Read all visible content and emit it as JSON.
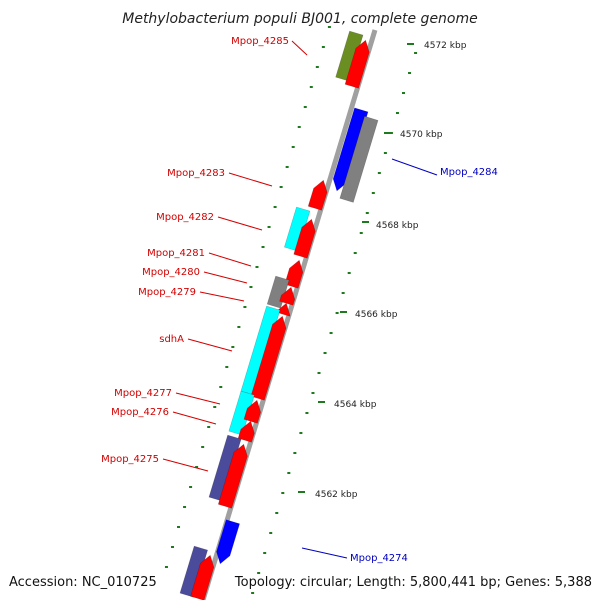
{
  "title": "Methylobacterium populi BJ001, complete genome",
  "footer": {
    "accession": "Accession: NC_010725",
    "summary": "Topology: circular; Length: 5,800,441 bp; Genes: 5,388"
  },
  "colors": {
    "backbone": "#a0a0a0",
    "tick": "#1e7a1e",
    "label_red": "#d40000",
    "label_blue": "#0000c0",
    "gene_red": "#ff0000",
    "gene_cyan": "#00ffff",
    "gene_blue": "#0000ff",
    "gene_gray": "#808080",
    "gene_olive": "#6b8e23",
    "gene_slate": "#4b4b9b"
  },
  "scale_labels": [
    "4572 kbp",
    "4570 kbp",
    "4568 kbp",
    "4566 kbp",
    "4564 kbp",
    "4562 kbp"
  ],
  "gene_labels": [
    {
      "text": "Mpop_4285",
      "color": "red"
    },
    {
      "text": "Mpop_4284",
      "color": "blue"
    },
    {
      "text": "Mpop_4283",
      "color": "red"
    },
    {
      "text": "Mpop_4282",
      "color": "red"
    },
    {
      "text": "Mpop_4281",
      "color": "red"
    },
    {
      "text": "Mpop_4280",
      "color": "red"
    },
    {
      "text": "Mpop_4279",
      "color": "red"
    },
    {
      "text": "sdhA",
      "color": "red"
    },
    {
      "text": "Mpop_4277",
      "color": "red"
    },
    {
      "text": "Mpop_4276",
      "color": "red"
    },
    {
      "text": "Mpop_4275",
      "color": "red"
    },
    {
      "text": "Mpop_4274",
      "color": "blue"
    }
  ]
}
